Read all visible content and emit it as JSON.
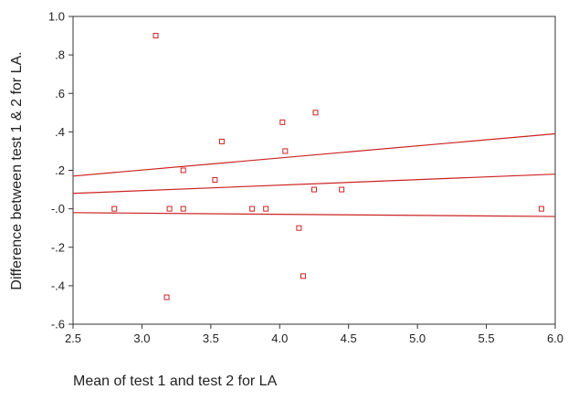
{
  "chart_data": {
    "type": "scatter",
    "xlabel": "Mean of test 1 and test 2 for LA",
    "ylabel": "Difference between test 1 & 2 for  LA.",
    "xlim": [
      2.5,
      6.0
    ],
    "ylim": [
      -0.6,
      1.0
    ],
    "x_ticks": [
      "2.5",
      "3.0",
      "3.5",
      "4.0",
      "4.5",
      "5.0",
      "5.5",
      "6.0"
    ],
    "y_ticks": [
      "1.0",
      ".8",
      ".6",
      ".4",
      ".2",
      "-.0",
      "-.2",
      "-.4",
      "-.6"
    ],
    "grid": false,
    "series": [
      {
        "marker": "open-square",
        "color": "#cc2222",
        "x": [
          2.8,
          3.1,
          3.18,
          3.2,
          3.3,
          3.3,
          3.53,
          3.58,
          3.8,
          3.9,
          4.02,
          4.04,
          4.14,
          4.17,
          4.25,
          4.26,
          4.45,
          5.9
        ],
        "y": [
          0.0,
          0.9,
          -0.46,
          0.0,
          0.2,
          0.0,
          0.15,
          0.35,
          0.0,
          0.0,
          0.45,
          0.3,
          -0.1,
          -0.35,
          0.1,
          0.5,
          0.1,
          0.0
        ]
      }
    ],
    "lines": [
      {
        "kind": "upper",
        "color": "#cc2222",
        "x": [
          2.5,
          6.0
        ],
        "y": [
          0.17,
          0.39
        ]
      },
      {
        "kind": "fit",
        "color": "#cc2222",
        "x": [
          2.5,
          6.0
        ],
        "y": [
          0.08,
          0.18
        ]
      },
      {
        "kind": "lower",
        "color": "#cc2222",
        "x": [
          2.5,
          6.0
        ],
        "y": [
          -0.02,
          -0.04
        ]
      }
    ]
  }
}
